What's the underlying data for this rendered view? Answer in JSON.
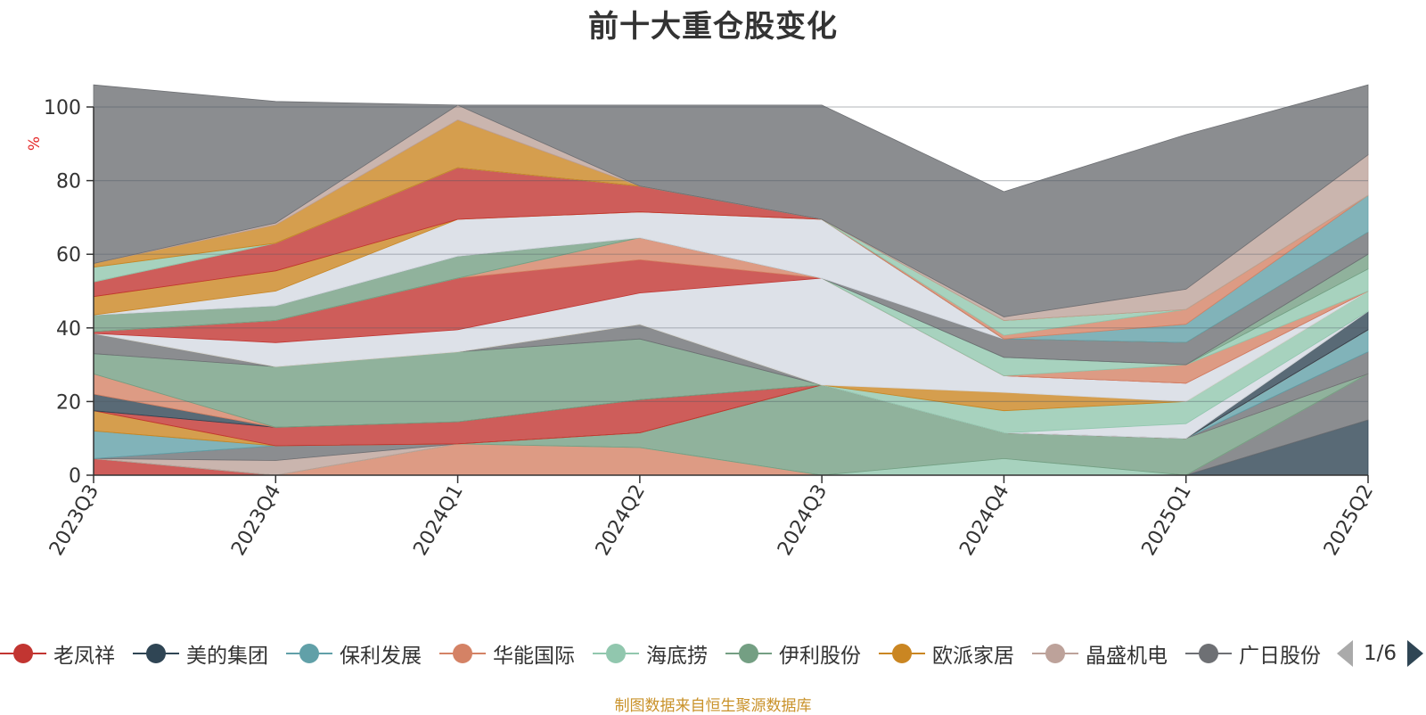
{
  "title": "前十大重仓股变化",
  "source_note": "制图数据来自恒生聚源数据库",
  "legend": {
    "items": [
      {
        "label": "老凤祥",
        "color": "#c23531"
      },
      {
        "label": "美的集团",
        "color": "#2f4554"
      },
      {
        "label": "保利发展",
        "color": "#61a0a8"
      },
      {
        "label": "华能国际",
        "color": "#d48265"
      },
      {
        "label": "海底捞",
        "color": "#91c7ae"
      },
      {
        "label": "伊利股份",
        "color": "#749f83"
      },
      {
        "label": "欧派家居",
        "color": "#ca8622"
      },
      {
        "label": "晶盛机电",
        "color": "#bda29a"
      },
      {
        "label": "广日股份",
        "color": "#6e7074"
      }
    ],
    "page_text": "1/6"
  },
  "chart_data": {
    "type": "area",
    "stacked": true,
    "categories": [
      "2023Q3",
      "2023Q4",
      "2024Q1",
      "2024Q2",
      "2024Q3",
      "2024Q4",
      "2025Q1",
      "2025Q2"
    ],
    "ylabel": "%",
    "ylim": [
      0,
      100
    ],
    "yticks": [
      0,
      20,
      40,
      60,
      80,
      100
    ],
    "grid": true,
    "series": [
      {
        "color": "#c23531",
        "values": [
          4.5,
          0,
          0,
          0,
          0,
          0,
          0,
          0
        ]
      },
      {
        "color": "#2f4554",
        "values": [
          0,
          0,
          0,
          0,
          0,
          0,
          0,
          15
        ]
      },
      {
        "color": "#6e7074",
        "values": [
          0,
          0,
          0,
          0,
          0,
          0,
          0,
          12.5
        ]
      },
      {
        "color": "#d48265",
        "values": [
          0,
          0,
          8.5,
          7.5,
          0,
          0,
          0,
          0
        ]
      },
      {
        "color": "#91c7ae",
        "values": [
          0,
          0,
          0,
          0,
          0,
          4.5,
          0,
          0
        ]
      },
      {
        "color": "#749f83",
        "values": [
          0,
          0,
          0,
          4,
          24.5,
          7,
          10,
          0
        ]
      },
      {
        "color": "#bda29a",
        "values": [
          0,
          4,
          0,
          0,
          0,
          0,
          0,
          0
        ]
      },
      {
        "color": "#6e7074",
        "values": [
          0,
          4,
          0,
          0,
          0,
          0,
          0,
          6
        ]
      },
      {
        "color": "#61a0a8",
        "values": [
          7.5,
          0,
          0,
          0,
          0,
          0,
          0,
          6
        ]
      },
      {
        "color": "#ca8622",
        "values": [
          5.5,
          0,
          0,
          0,
          0,
          0,
          0,
          0
        ]
      },
      {
        "color": "#c23531",
        "values": [
          0,
          5,
          6,
          9,
          0,
          0,
          0,
          0
        ]
      },
      {
        "color": "#2f4554",
        "values": [
          4.5,
          0,
          0,
          0,
          0,
          0,
          0,
          5
        ]
      },
      {
        "color": "#d48265",
        "values": [
          5.5,
          0,
          0,
          0,
          0,
          0,
          0,
          0
        ]
      },
      {
        "color": "#749f83",
        "values": [
          5.5,
          16.5,
          19,
          16.5,
          0,
          0,
          0,
          0
        ]
      },
      {
        "color": "#6e7074",
        "values": [
          5.5,
          0,
          0,
          4,
          0,
          0,
          0,
          0
        ]
      },
      {
        "color": "#d5dae2",
        "values": [
          0,
          0,
          0,
          0,
          0,
          0,
          4,
          0
        ]
      },
      {
        "color": "#91c7ae",
        "values": [
          0,
          0,
          0,
          0,
          0,
          6,
          6,
          5.5
        ]
      },
      {
        "color": "#ca8622",
        "values": [
          0,
          0,
          0,
          0,
          0,
          5,
          0,
          0
        ]
      },
      {
        "color": "#d5dae2",
        "values": [
          0,
          6.5,
          6,
          8.5,
          29,
          4.5,
          5,
          0
        ]
      },
      {
        "color": "#c23531",
        "values": [
          0.5,
          6,
          14,
          9,
          0,
          0,
          0,
          0
        ]
      },
      {
        "color": "#d48265",
        "values": [
          0,
          0,
          0,
          6,
          0,
          0,
          5,
          0
        ]
      },
      {
        "color": "#91c7ae",
        "values": [
          0,
          0,
          0,
          0,
          0,
          5,
          0,
          6
        ]
      },
      {
        "color": "#749f83",
        "values": [
          4.5,
          4,
          6,
          0,
          0,
          0,
          0,
          4
        ]
      },
      {
        "color": "#6e7074",
        "values": [
          0,
          0,
          0,
          0,
          0,
          5,
          6,
          6
        ]
      },
      {
        "color": "#d5dae2",
        "values": [
          0,
          4,
          10,
          7,
          16,
          0,
          0,
          0
        ]
      },
      {
        "color": "#ca8622",
        "values": [
          5,
          5.5,
          0,
          0,
          0,
          0,
          0,
          0
        ]
      },
      {
        "color": "#c23531",
        "values": [
          4,
          7.5,
          14,
          7,
          0,
          0,
          0,
          0
        ]
      },
      {
        "color": "#61a0a8",
        "values": [
          0,
          0,
          0,
          0,
          0,
          0,
          5,
          10
        ]
      },
      {
        "color": "#d48265",
        "values": [
          0,
          0,
          0,
          0,
          0,
          1,
          4,
          0
        ]
      },
      {
        "color": "#91c7ae",
        "values": [
          4,
          0,
          0,
          0,
          0,
          4,
          0,
          0
        ]
      },
      {
        "color": "#ca8622",
        "values": [
          1,
          5,
          13,
          0,
          0,
          0,
          0,
          0
        ]
      },
      {
        "color": "#bda29a",
        "values": [
          0,
          0.5,
          4,
          0,
          0,
          1,
          5.5,
          11
        ]
      },
      {
        "color": "#6e7074",
        "values": [
          48.5,
          33,
          0,
          22,
          31,
          34,
          42,
          19
        ]
      }
    ]
  }
}
